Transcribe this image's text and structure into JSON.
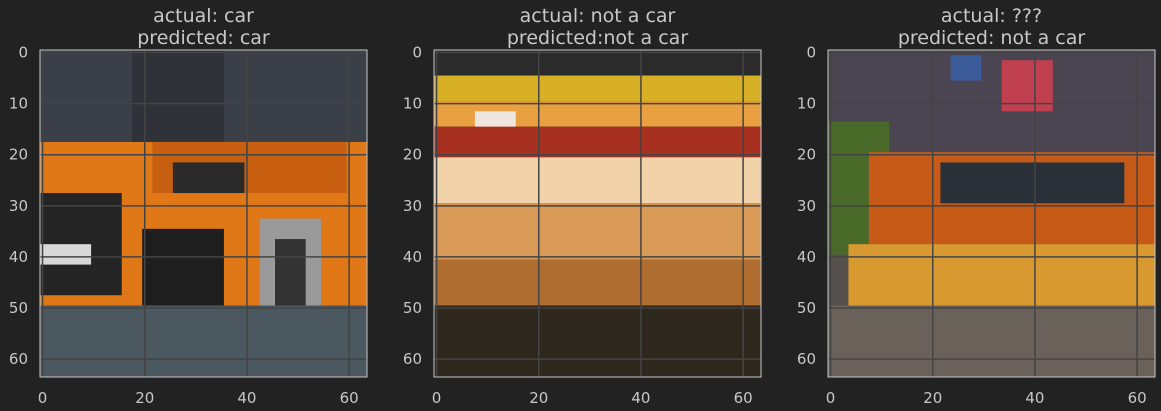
{
  "chart_data": [
    {
      "type": "image",
      "title_lines": [
        "actual: car",
        "predicted: car"
      ],
      "xticks": [
        0,
        20,
        40,
        60
      ],
      "yticks": [
        0,
        10,
        20,
        30,
        40,
        50,
        60
      ],
      "xlim": [
        -0.5,
        63.5
      ],
      "ylim": [
        63.5,
        -0.5
      ],
      "grid": true,
      "scene": [
        {
          "y0": 0,
          "y1": 64,
          "x0": 0,
          "x1": 64,
          "color": "#3a3f48"
        },
        {
          "y0": 0,
          "y1": 18,
          "x0": 18,
          "x1": 36,
          "color": "#2f3239"
        },
        {
          "y0": 18,
          "y1": 50,
          "x0": 0,
          "x1": 64,
          "color": "#e07818"
        },
        {
          "y0": 18,
          "y1": 28,
          "x0": 22,
          "x1": 60,
          "color": "#c85f10"
        },
        {
          "y0": 22,
          "y1": 28,
          "x0": 26,
          "x1": 40,
          "color": "#2a2a2a"
        },
        {
          "y0": 28,
          "y1": 48,
          "x0": 0,
          "x1": 16,
          "color": "#242424"
        },
        {
          "y0": 38,
          "y1": 42,
          "x0": 0,
          "x1": 10,
          "color": "#d8d8d8"
        },
        {
          "y0": 35,
          "y1": 50,
          "x0": 20,
          "x1": 36,
          "color": "#1e1e1e"
        },
        {
          "y0": 33,
          "y1": 55,
          "x0": 43,
          "x1": 55,
          "color": "#9a9a9a"
        },
        {
          "y0": 37,
          "y1": 51,
          "x0": 46,
          "x1": 52,
          "color": "#333333"
        },
        {
          "y0": 50,
          "y1": 64,
          "x0": 0,
          "x1": 64,
          "color": "#4b5860"
        }
      ]
    },
    {
      "type": "image",
      "title_lines": [
        "actual: not a car",
        "predicted:not a car"
      ],
      "xticks": [
        0,
        20,
        40,
        60
      ],
      "yticks": [
        0,
        10,
        20,
        30,
        40,
        50,
        60
      ],
      "xlim": [
        -0.5,
        63.5
      ],
      "ylim": [
        63.5,
        -0.5
      ],
      "grid": true,
      "scene": [
        {
          "y0": 0,
          "y1": 5,
          "x0": 0,
          "x1": 64,
          "color": "#2b2b2b"
        },
        {
          "y0": 5,
          "y1": 10,
          "x0": 0,
          "x1": 64,
          "color": "#d8b025"
        },
        {
          "y0": 10,
          "y1": 15,
          "x0": 0,
          "x1": 64,
          "color": "#e8a040"
        },
        {
          "y0": 12,
          "y1": 16,
          "x0": 8,
          "x1": 16,
          "color": "#f0e6e0"
        },
        {
          "y0": 15,
          "y1": 21,
          "x0": 0,
          "x1": 64,
          "color": "#a83020"
        },
        {
          "y0": 21,
          "y1": 30,
          "x0": 0,
          "x1": 64,
          "color": "#f2d2a8"
        },
        {
          "y0": 30,
          "y1": 41,
          "x0": 0,
          "x1": 64,
          "color": "#d99a58"
        },
        {
          "y0": 41,
          "y1": 50,
          "x0": 0,
          "x1": 64,
          "color": "#b06d30"
        },
        {
          "y0": 50,
          "y1": 64,
          "x0": 0,
          "x1": 64,
          "color": "#2e271e"
        }
      ]
    },
    {
      "type": "image",
      "title_lines": [
        "actual: ???",
        "predicted: not a car"
      ],
      "xticks": [
        0,
        20,
        40,
        60
      ],
      "yticks": [
        0,
        10,
        20,
        30,
        40,
        50,
        60
      ],
      "xlim": [
        -0.5,
        63.5
      ],
      "ylim": [
        63.5,
        -0.5
      ],
      "grid": true,
      "scene": [
        {
          "y0": 0,
          "y1": 64,
          "x0": 0,
          "x1": 64,
          "color": "#55504c"
        },
        {
          "y0": 0,
          "y1": 20,
          "x0": 0,
          "x1": 64,
          "color": "#4a4550"
        },
        {
          "y0": 1,
          "y1": 6,
          "x0": 24,
          "x1": 30,
          "color": "#3a5a9a"
        },
        {
          "y0": 2,
          "y1": 12,
          "x0": 34,
          "x1": 44,
          "color": "#c04050"
        },
        {
          "y0": 14,
          "y1": 40,
          "x0": 0,
          "x1": 12,
          "color": "#4a6a2a"
        },
        {
          "y0": 20,
          "y1": 38,
          "x0": 8,
          "x1": 64,
          "color": "#c85a18"
        },
        {
          "y0": 22,
          "y1": 30,
          "x0": 22,
          "x1": 58,
          "color": "#2a3038"
        },
        {
          "y0": 38,
          "y1": 50,
          "x0": 4,
          "x1": 64,
          "color": "#d89a30"
        },
        {
          "y0": 50,
          "y1": 64,
          "x0": 0,
          "x1": 64,
          "color": "#6a625a"
        }
      ]
    }
  ]
}
